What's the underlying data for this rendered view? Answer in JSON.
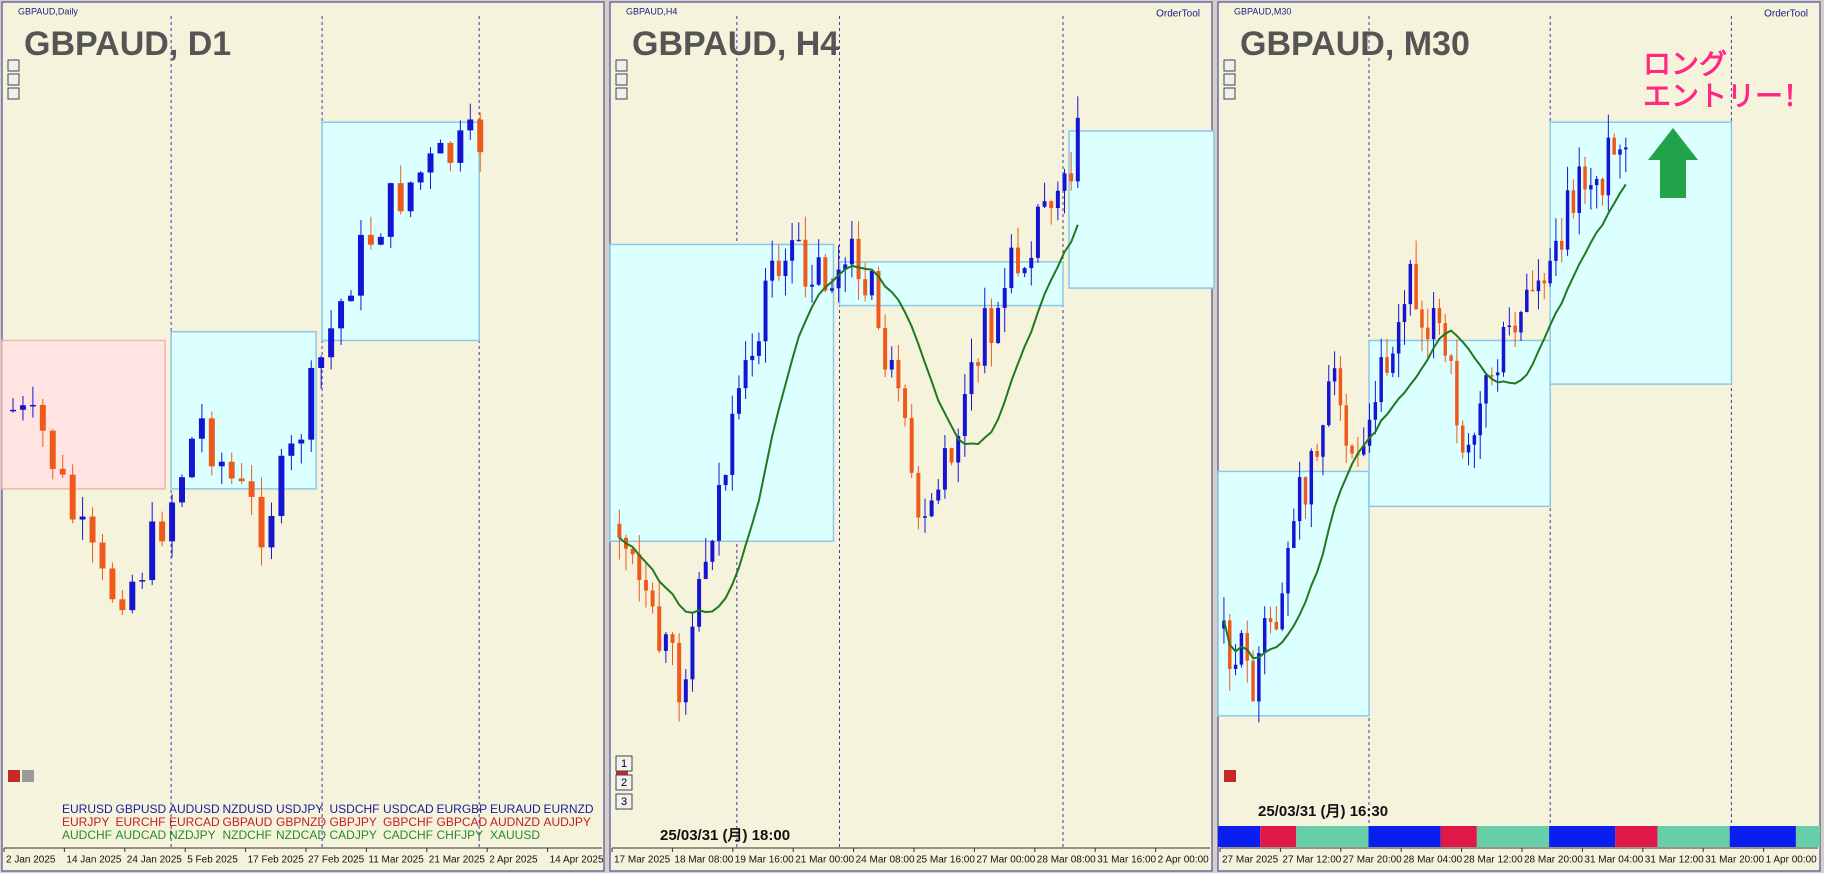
{
  "panels": [
    {
      "window_title": "GBPAUD,Daily",
      "symbol_title": "GBPAUD, D1",
      "x_labels": [
        "2 Jan 2025",
        "14 Jan 2025",
        "24 Jan 2025",
        "5 Feb 2025",
        "17 Feb 2025",
        "27 Feb 2025",
        "11 Mar 2025",
        "21 Mar 2025",
        "2 Apr 2025",
        "14 Apr 2025"
      ],
      "symbol_rows": [
        {
          "color": "#1a1a9c",
          "symbols": [
            "EURUSD",
            "GBPUSD",
            "AUDUSD",
            "NZDUSD",
            "USDJPY",
            "USDCHF",
            "USDCAD",
            "EURGBP",
            "EURAUD",
            "EURNZD"
          ]
        },
        {
          "color": "#c41e1e",
          "symbols": [
            "EURJPY",
            "EURCHF",
            "EURCAD",
            "GBPAUD",
            "GBPNZD",
            "GBPJPY",
            "GBPCHF",
            "GBPCAD",
            "AUDNZD",
            "AUDJPY"
          ]
        },
        {
          "color": "#2a8a2a",
          "symbols": [
            "AUDCHF",
            "AUDCAD",
            "NZDJPY",
            "NZDCHF",
            "NZDCAD",
            "CADJPY",
            "CADCHF",
            "CHFJPY",
            "XAUUSD"
          ]
        }
      ]
    },
    {
      "window_title": "GBPAUD,H4",
      "symbol_title": "GBPAUD, H4",
      "order_tool": "OrderTool",
      "buttons": [
        "1",
        "2",
        "3"
      ],
      "timestamp": "25/03/31 (月) 18:00",
      "x_labels": [
        "17 Mar 2025",
        "18 Mar 08:00",
        "19 Mar 16:00",
        "21 Mar 00:00",
        "24 Mar 08:00",
        "25 Mar 16:00",
        "27 Mar 00:00",
        "28 Mar 08:00",
        "31 Mar 16:00",
        "2 Apr 00:00"
      ]
    },
    {
      "window_title": "GBPAUD,M30",
      "symbol_title": "GBPAUD, M30",
      "order_tool": "OrderTool",
      "timestamp": "25/03/31 (月) 16:30",
      "annotation": [
        "ロング",
        "エントリー！"
      ],
      "x_labels": [
        "27 Mar 2025",
        "27 Mar 12:00",
        "27 Mar 20:00",
        "28 Mar 04:00",
        "28 Mar 12:00",
        "28 Mar 20:00",
        "31 Mar 04:00",
        "31 Mar 12:00",
        "31 Mar 20:00",
        "1 Apr 00:00"
      ]
    }
  ]
}
